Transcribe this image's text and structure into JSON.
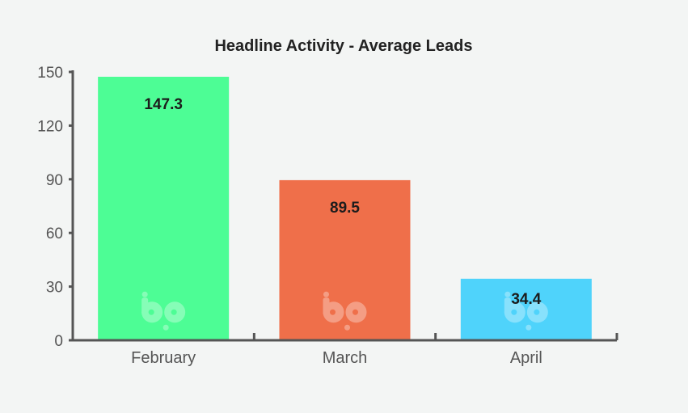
{
  "chart_data": {
    "type": "bar",
    "title": "Headline Activity - Average Leads",
    "categories": [
      "February",
      "March",
      "April"
    ],
    "values": [
      147.3,
      89.5,
      34.4
    ],
    "data_labels": [
      "147.3",
      "89.5",
      "34.4"
    ],
    "colors": [
      "#4dfd95",
      "#ef6f4a",
      "#4fd3fb"
    ],
    "ylim": [
      0,
      150
    ],
    "yticks": [
      0,
      30,
      60,
      90,
      120,
      150
    ],
    "xlabel": "",
    "ylabel": "",
    "grid": false,
    "legend": "none",
    "axis_color": "#555555",
    "watermark_icon": "bp-logo-icon"
  }
}
